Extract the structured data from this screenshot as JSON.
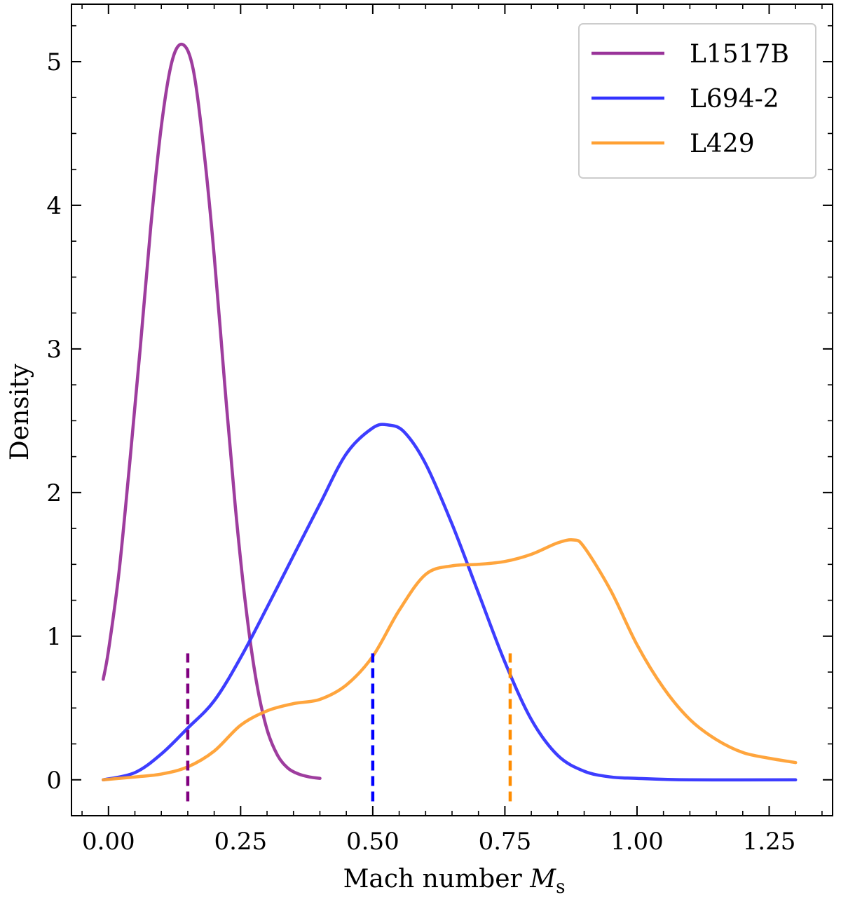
{
  "chart_data": {
    "type": "line",
    "title": "",
    "xlabel": "Mach number",
    "xlabel_symbol": "M",
    "xlabel_subscript": "s",
    "ylabel": "Density",
    "xlim": [
      -0.07,
      1.37
    ],
    "ylim": [
      -0.25,
      5.4
    ],
    "xticks": [
      0.0,
      0.25,
      0.5,
      0.75,
      1.0,
      1.25
    ],
    "xtick_labels": [
      "0.00",
      "0.25",
      "0.50",
      "0.75",
      "1.00",
      "1.25"
    ],
    "yticks": [
      0,
      1,
      2,
      3,
      4,
      5
    ],
    "ytick_labels": [
      "0",
      "1",
      "2",
      "3",
      "4",
      "5"
    ],
    "grid": false,
    "legend": "top-right",
    "series": [
      {
        "name": "L1517B",
        "color": "#993399",
        "x": [
          -0.01,
          0.0,
          0.02,
          0.04,
          0.06,
          0.08,
          0.1,
          0.12,
          0.14,
          0.16,
          0.18,
          0.2,
          0.22,
          0.24,
          0.26,
          0.28,
          0.3,
          0.32,
          0.34,
          0.36,
          0.38,
          0.4
        ],
        "y": [
          0.7,
          0.9,
          1.45,
          2.2,
          3.0,
          3.85,
          4.55,
          5.0,
          5.12,
          4.95,
          4.4,
          3.65,
          2.75,
          1.9,
          1.2,
          0.68,
          0.35,
          0.17,
          0.08,
          0.04,
          0.02,
          0.01
        ]
      },
      {
        "name": "L694-2",
        "color": "#3333ff",
        "x": [
          -0.01,
          0.05,
          0.1,
          0.15,
          0.2,
          0.25,
          0.3,
          0.35,
          0.4,
          0.45,
          0.5,
          0.53,
          0.56,
          0.6,
          0.65,
          0.7,
          0.75,
          0.8,
          0.85,
          0.9,
          0.95,
          1.0,
          1.1,
          1.3
        ],
        "y": [
          0.0,
          0.05,
          0.18,
          0.36,
          0.55,
          0.85,
          1.2,
          1.56,
          1.92,
          2.27,
          2.45,
          2.47,
          2.42,
          2.2,
          1.78,
          1.3,
          0.82,
          0.42,
          0.17,
          0.06,
          0.02,
          0.01,
          0.0,
          0.0
        ]
      },
      {
        "name": "L429",
        "color": "#ffa033",
        "x": [
          -0.01,
          0.05,
          0.1,
          0.15,
          0.2,
          0.25,
          0.3,
          0.35,
          0.4,
          0.45,
          0.5,
          0.55,
          0.6,
          0.65,
          0.7,
          0.75,
          0.8,
          0.85,
          0.88,
          0.9,
          0.95,
          1.0,
          1.05,
          1.1,
          1.15,
          1.2,
          1.25,
          1.3
        ],
        "y": [
          0.0,
          0.02,
          0.04,
          0.09,
          0.2,
          0.38,
          0.48,
          0.53,
          0.56,
          0.66,
          0.86,
          1.18,
          1.43,
          1.49,
          1.5,
          1.52,
          1.57,
          1.65,
          1.67,
          1.62,
          1.32,
          0.94,
          0.64,
          0.42,
          0.28,
          0.19,
          0.15,
          0.12
        ]
      }
    ],
    "vlines": [
      {
        "series": "L1517B",
        "x": 0.15,
        "ymin": -0.15,
        "ymax": 0.88,
        "color": "#800080",
        "style": "dashed"
      },
      {
        "series": "L694-2",
        "x": 0.5,
        "ymin": -0.15,
        "ymax": 0.88,
        "color": "#0000ff",
        "style": "dashed"
      },
      {
        "series": "L429",
        "x": 0.76,
        "ymin": -0.15,
        "ymax": 0.88,
        "color": "#ff8c00",
        "style": "dashed"
      }
    ]
  }
}
